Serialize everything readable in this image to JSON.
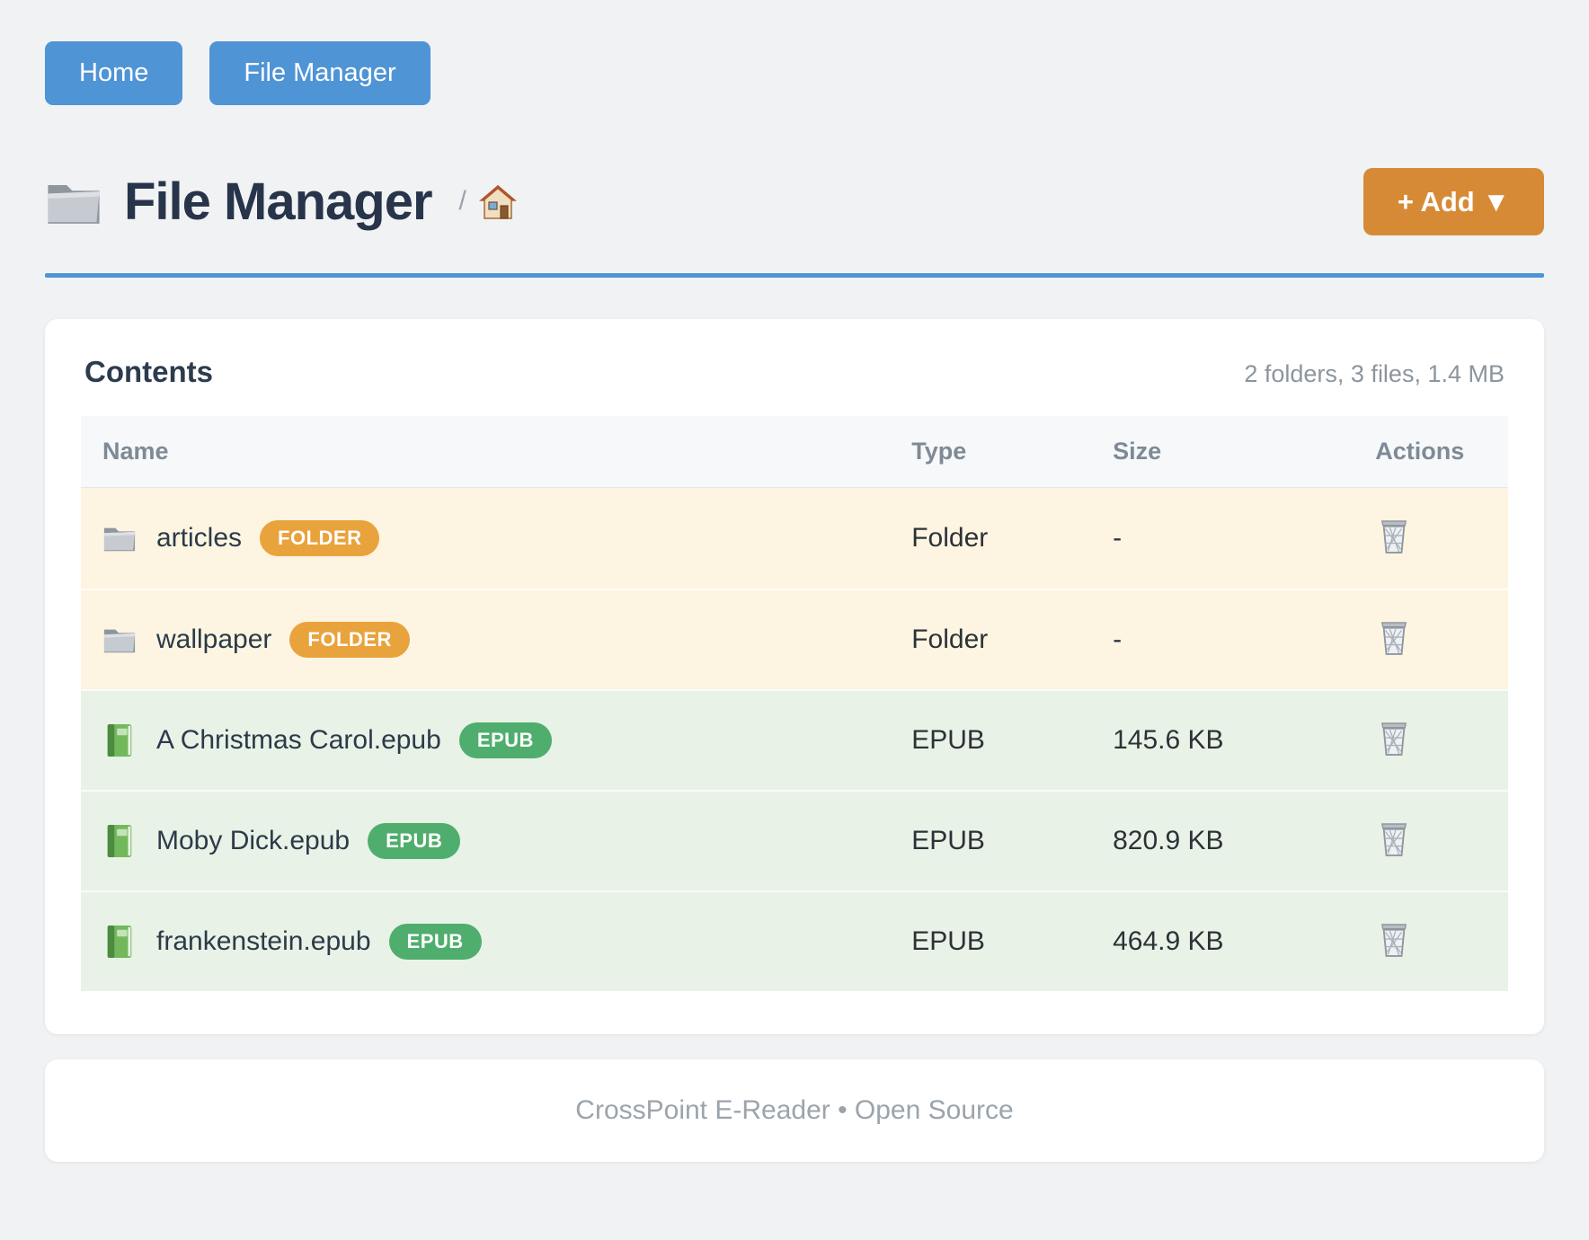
{
  "nav": {
    "home_label": "Home",
    "file_manager_label": "File Manager"
  },
  "header": {
    "title": "File Manager",
    "breadcrumb_separator": "/",
    "add_button_label": "+ Add ▼"
  },
  "contents": {
    "heading": "Contents",
    "summary": "2 folders, 3 files, 1.4 MB",
    "columns": {
      "name": "Name",
      "type": "Type",
      "size": "Size",
      "actions": "Actions"
    },
    "rows": [
      {
        "name": "articles",
        "badge": "FOLDER",
        "type": "Folder",
        "size": "-",
        "kind": "folder"
      },
      {
        "name": "wallpaper",
        "badge": "FOLDER",
        "type": "Folder",
        "size": "-",
        "kind": "folder"
      },
      {
        "name": "A Christmas Carol.epub",
        "badge": "EPUB",
        "type": "EPUB",
        "size": "145.6 KB",
        "kind": "epub"
      },
      {
        "name": "Moby Dick.epub",
        "badge": "EPUB",
        "type": "EPUB",
        "size": "820.9 KB",
        "kind": "epub"
      },
      {
        "name": "frankenstein.epub",
        "badge": "EPUB",
        "type": "EPUB",
        "size": "464.9 KB",
        "kind": "epub"
      }
    ]
  },
  "footer": {
    "text": "CrossPoint E-Reader • Open Source"
  },
  "colors": {
    "nav_button": "#4f94d5",
    "divider": "#4f94d5",
    "add_button": "#d78a35",
    "folder_badge": "#e9a33d",
    "epub_badge": "#4fae6d",
    "folder_row_bg": "#fdf5e1",
    "epub_row_bg": "#e8f2e6"
  }
}
